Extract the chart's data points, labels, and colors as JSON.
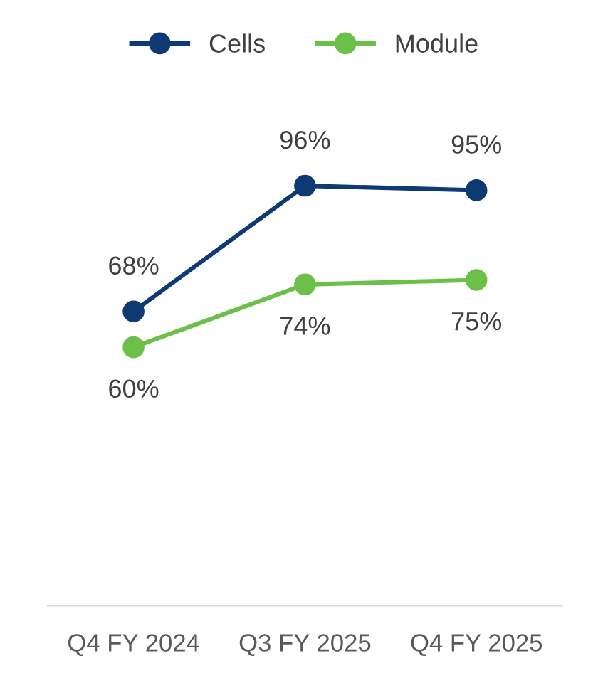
{
  "chart_data": {
    "type": "line",
    "categories": [
      "Q4 FY 2024",
      "Q3 FY 2025",
      "Q4 FY 2025"
    ],
    "series": [
      {
        "name": "Cells",
        "color": "#0e3a73",
        "values": [
          68,
          96,
          95
        ],
        "value_labels": [
          "68%",
          "96%",
          "95%"
        ]
      },
      {
        "name": "Module",
        "color": "#6cc04a",
        "values": [
          60,
          74,
          75
        ],
        "value_labels": [
          "60%",
          "74%",
          "75%"
        ]
      }
    ],
    "legend": "top",
    "marker": "circle",
    "line_style": "solid"
  }
}
